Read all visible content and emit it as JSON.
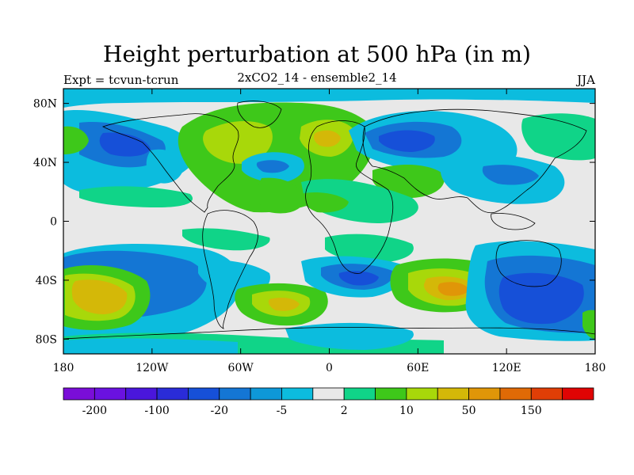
{
  "title": "Height perturbation at 500 hPa (in m)",
  "left_label": "Expt = tcvun-tcrun",
  "center_label": "2xCO2_14 - ensemble2_14",
  "right_label": "JJA",
  "map": {
    "lon_range": [
      -180,
      180
    ],
    "lat_range": [
      -90,
      90
    ],
    "projection": "cylindrical equidistant",
    "x_ticks": [
      {
        "value": -180,
        "label": "180"
      },
      {
        "value": -120,
        "label": "120W"
      },
      {
        "value": -60,
        "label": "60W"
      },
      {
        "value": 0,
        "label": "0"
      },
      {
        "value": 60,
        "label": "60E"
      },
      {
        "value": 120,
        "label": "120E"
      },
      {
        "value": 180,
        "label": "180"
      }
    ],
    "y_ticks": [
      {
        "value": 80,
        "label": "80N"
      },
      {
        "value": 40,
        "label": "40N"
      },
      {
        "value": 0,
        "label": "0"
      },
      {
        "value": -40,
        "label": "40S"
      },
      {
        "value": -80,
        "label": "80S"
      }
    ],
    "background_color": "#e8e8e8",
    "coastline_color": "#000000"
  },
  "colorbar": {
    "colors": [
      "#7a0ed8",
      "#6a12e0",
      "#4a16dc",
      "#2a2cd8",
      "#1650d8",
      "#1476d4",
      "#0e98d8",
      "#0cbcde",
      "#e8e8e8",
      "#10d488",
      "#3ec81a",
      "#a8d80a",
      "#d4b808",
      "#e09608",
      "#e06a06",
      "#e03e06",
      "#e00404"
    ],
    "labels": [
      {
        "index": 1,
        "text": "-200"
      },
      {
        "index": 3,
        "text": "-100"
      },
      {
        "index": 5,
        "text": "-20"
      },
      {
        "index": 7,
        "text": "-5"
      },
      {
        "index": 9,
        "text": "2"
      },
      {
        "index": 11,
        "text": "10"
      },
      {
        "index": 13,
        "text": "50"
      },
      {
        "index": 15,
        "text": "150"
      }
    ]
  }
}
